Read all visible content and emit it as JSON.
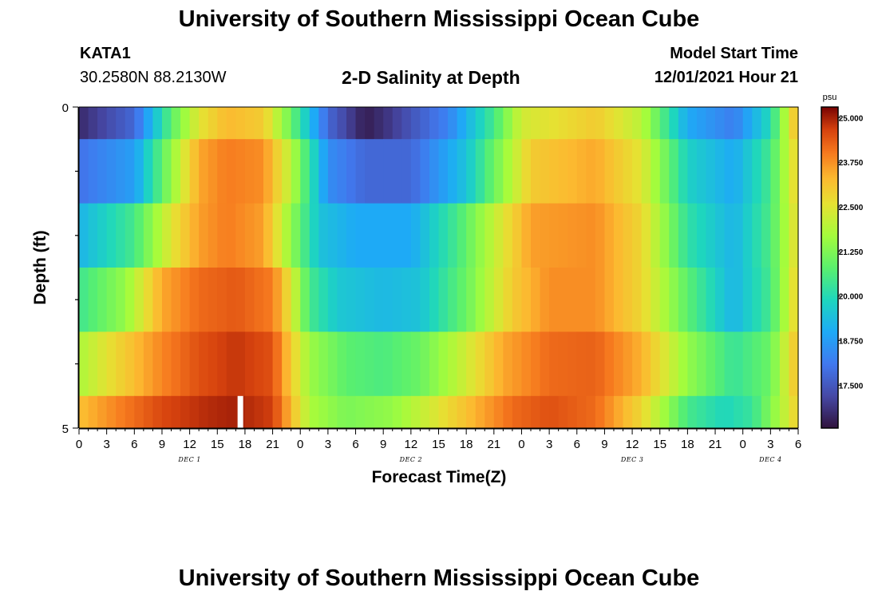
{
  "page": {
    "title": "University of Southern Mississippi Ocean Cube",
    "station_name": "KATA1",
    "station_coords": "30.2580N  88.2130W",
    "chart_heading": "2-D Salinity at Depth",
    "model_start_label": "Model Start Time",
    "model_start_value": "12/01/2021 Hour 21",
    "footer_title": "University of Southern Mississippi Ocean Cube"
  },
  "chart_data": {
    "type": "heatmap",
    "title": "2-D Salinity at Depth",
    "xlabel": "Forecast Time(Z)",
    "ylabel": "Depth (ft)",
    "x_range_hours": [
      0,
      78
    ],
    "x_step_hours": 1,
    "depth_range_ft": [
      0,
      5
    ],
    "y_tick_labels": [
      "0",
      "5"
    ],
    "x_tick_labels": [
      "0",
      "3",
      "6",
      "9",
      "12",
      "15",
      "18",
      "21",
      "0",
      "3",
      "6",
      "9",
      "12",
      "15",
      "18",
      "21",
      "0",
      "3",
      "6",
      "9",
      "12",
      "15",
      "18",
      "21",
      "0",
      "3",
      "6"
    ],
    "date_labels": [
      {
        "hour": 12,
        "text": "DEC 1"
      },
      {
        "hour": 36,
        "text": "DEC 2"
      },
      {
        "hour": 60,
        "text": "DEC 3"
      },
      {
        "hour": 75,
        "text": "DEC 4"
      }
    ],
    "colorbar": {
      "unit": "psu",
      "min": 16.3,
      "max": 25.3,
      "tick_labels": [
        "25.000",
        "23.750",
        "22.500",
        "21.250",
        "20.000",
        "18.750",
        "17.500"
      ],
      "tick_values": [
        25.0,
        23.75,
        22.5,
        21.25,
        20.0,
        18.75,
        17.5
      ]
    },
    "current_time_marker_hour": 17.5,
    "layers": [
      {
        "depth_top": 0.0,
        "depth_bottom": 0.5,
        "keyframes": [
          [
            0,
            16.7
          ],
          [
            6,
            17.8
          ],
          [
            10,
            20.8
          ],
          [
            13,
            22.5
          ],
          [
            16,
            23.3
          ],
          [
            20,
            23.0
          ],
          [
            23,
            21.0
          ],
          [
            27,
            17.8
          ],
          [
            31,
            16.5
          ],
          [
            33,
            16.8
          ],
          [
            40,
            18.3
          ],
          [
            45,
            20.5
          ],
          [
            48,
            22.3
          ],
          [
            56,
            23.0
          ],
          [
            61,
            22.0
          ],
          [
            66,
            19.0
          ],
          [
            71,
            18.2
          ],
          [
            75,
            20.0
          ],
          [
            78,
            23.5
          ]
        ]
      },
      {
        "depth_top": 0.5,
        "depth_bottom": 1.5,
        "keyframes": [
          [
            0,
            18.0
          ],
          [
            6,
            18.8
          ],
          [
            10,
            21.5
          ],
          [
            13,
            23.5
          ],
          [
            16,
            24.0
          ],
          [
            20,
            23.8
          ],
          [
            23,
            22.0
          ],
          [
            27,
            18.5
          ],
          [
            31,
            17.8
          ],
          [
            36,
            17.8
          ],
          [
            42,
            19.5
          ],
          [
            46,
            21.5
          ],
          [
            49,
            23.0
          ],
          [
            56,
            23.5
          ],
          [
            61,
            22.5
          ],
          [
            66,
            19.8
          ],
          [
            71,
            19.0
          ],
          [
            75,
            20.5
          ],
          [
            78,
            23.0
          ]
        ]
      },
      {
        "depth_top": 1.5,
        "depth_bottom": 2.5,
        "keyframes": [
          [
            0,
            19.2
          ],
          [
            6,
            20.5
          ],
          [
            10,
            22.5
          ],
          [
            13,
            23.6
          ],
          [
            16,
            24.0
          ],
          [
            20,
            23.6
          ],
          [
            23,
            21.5
          ],
          [
            26,
            19.5
          ],
          [
            30,
            19.0
          ],
          [
            36,
            19.0
          ],
          [
            41,
            20.5
          ],
          [
            46,
            22.5
          ],
          [
            49,
            23.6
          ],
          [
            56,
            23.8
          ],
          [
            61,
            22.8
          ],
          [
            66,
            20.2
          ],
          [
            71,
            19.2
          ],
          [
            75,
            20.6
          ],
          [
            78,
            22.8
          ]
        ]
      },
      {
        "depth_top": 2.5,
        "depth_bottom": 3.5,
        "keyframes": [
          [
            0,
            20.4
          ],
          [
            5,
            21.5
          ],
          [
            9,
            23.5
          ],
          [
            13,
            24.2
          ],
          [
            17,
            24.4
          ],
          [
            21,
            24.0
          ],
          [
            23,
            22.5
          ],
          [
            25,
            20.5
          ],
          [
            28,
            19.6
          ],
          [
            33,
            19.3
          ],
          [
            37,
            19.5
          ],
          [
            42,
            21.0
          ],
          [
            47,
            23.0
          ],
          [
            51,
            23.8
          ],
          [
            56,
            23.8
          ],
          [
            61,
            22.8
          ],
          [
            66,
            20.8
          ],
          [
            71,
            19.2
          ],
          [
            75,
            20.5
          ],
          [
            78,
            23.0
          ]
        ]
      },
      {
        "depth_top": 3.5,
        "depth_bottom": 4.5,
        "keyframes": [
          [
            0,
            21.8
          ],
          [
            4,
            22.8
          ],
          [
            9,
            23.9
          ],
          [
            13,
            24.5
          ],
          [
            17,
            24.8
          ],
          [
            21,
            24.5
          ],
          [
            23,
            23.0
          ],
          [
            25,
            21.6
          ],
          [
            29,
            20.8
          ],
          [
            33,
            20.6
          ],
          [
            37,
            21.0
          ],
          [
            41,
            22.0
          ],
          [
            46,
            23.5
          ],
          [
            51,
            24.2
          ],
          [
            56,
            24.3
          ],
          [
            61,
            23.4
          ],
          [
            66,
            21.5
          ],
          [
            71,
            20.3
          ],
          [
            75,
            21.0
          ],
          [
            78,
            23.3
          ]
        ]
      },
      {
        "depth_top": 4.5,
        "depth_bottom": 5.0,
        "keyframes": [
          [
            0,
            23.2
          ],
          [
            4,
            23.9
          ],
          [
            9,
            24.6
          ],
          [
            14,
            24.9
          ],
          [
            17,
            25.0
          ],
          [
            21,
            24.7
          ],
          [
            23,
            23.3
          ],
          [
            25,
            21.8
          ],
          [
            29,
            21.2
          ],
          [
            34,
            21.5
          ],
          [
            38,
            22.3
          ],
          [
            43,
            23.4
          ],
          [
            47,
            24.2
          ],
          [
            51,
            24.5
          ],
          [
            56,
            24.2
          ],
          [
            61,
            22.8
          ],
          [
            66,
            20.5
          ],
          [
            70,
            19.9
          ],
          [
            73,
            20.3
          ],
          [
            76,
            21.8
          ],
          [
            78,
            23.0
          ]
        ]
      }
    ]
  }
}
